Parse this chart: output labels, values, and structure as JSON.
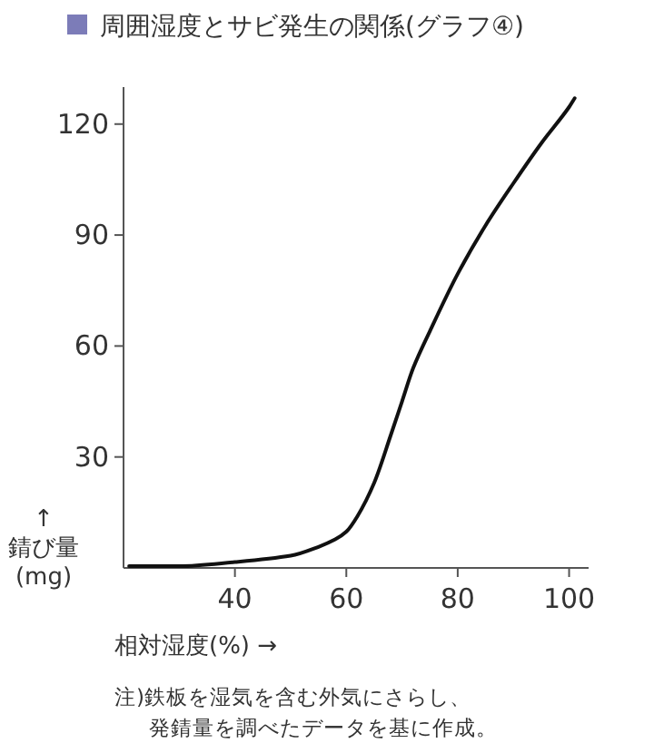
{
  "chart_data": {
    "type": "line",
    "title": "周囲湿度とサビ発生の関係(グラフ④)",
    "xlabel": "相対湿度(%) →",
    "ylabel": "↑\n錆び量\n(mg)",
    "x": [
      21,
      30,
      40,
      50,
      55,
      58,
      60,
      62,
      65,
      68,
      70,
      72,
      75,
      80,
      85,
      90,
      95,
      100,
      101
    ],
    "series": [
      {
        "color": "#111111",
        "values": [
          0.5,
          0.5,
          1.6,
          3.3,
          5.7,
          7.7,
          9.8,
          14,
          23,
          36,
          45,
          54,
          64,
          79.5,
          92.6,
          104,
          114.8,
          124.6,
          127
        ]
      }
    ],
    "xlim": [
      20,
      103.5
    ],
    "ylim": [
      0,
      130
    ],
    "xticks": [
      40,
      60,
      80,
      100
    ],
    "yticks": [
      30,
      60,
      90,
      120
    ],
    "grid": false,
    "marker": "none",
    "line_style": "solid",
    "annotations": [
      "注)鉄板を湿気を含む外気にさらし、",
      "発錆量を調べたデータを基に作成。"
    ]
  }
}
